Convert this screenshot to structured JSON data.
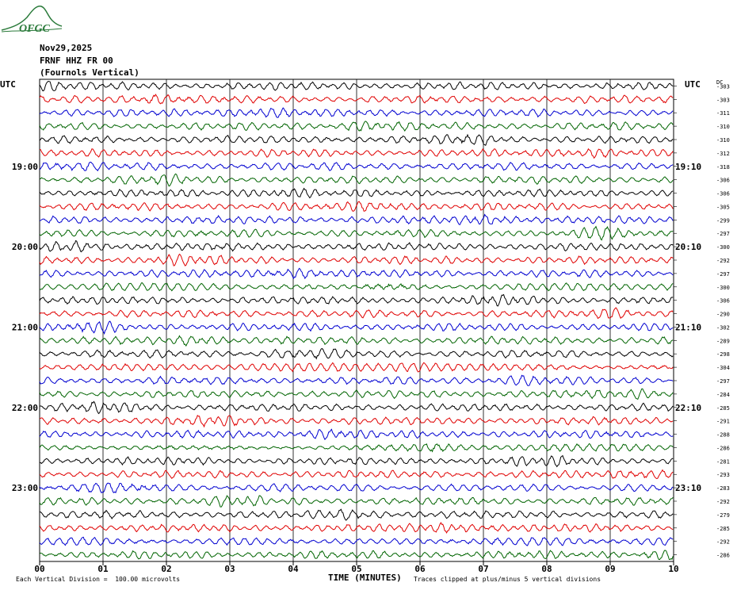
{
  "logo": {
    "text": "OFGC"
  },
  "header": {
    "date": "Nov29,2025",
    "station": "FRNF HHZ FR 00",
    "description": "(Fournols Vertical)"
  },
  "axes": {
    "left_label": "UTC",
    "right_label": "UTC",
    "dc_label": "DC",
    "x_title": "TIME (MINUTES)"
  },
  "footer": {
    "scale_note": "Each Vertical Division =  100.00 microvolts",
    "clip_note": "Traces clipped at plus/minus 5 vertical divisions"
  },
  "colors": {
    "trace_cycle": [
      "#000000",
      "#e00000",
      "#0000d0",
      "#006400"
    ],
    "grid": "#000000",
    "logo": "#2a7a3a"
  },
  "chart_data": {
    "type": "line",
    "title": "",
    "xlabel": "TIME (MINUTES)",
    "ylabel": "UTC",
    "xlim": [
      0,
      10
    ],
    "x_ticks": [
      "00",
      "01",
      "02",
      "03",
      "04",
      "05",
      "06",
      "07",
      "08",
      "09",
      "10"
    ],
    "left_hour_labels": [
      {
        "row": 6,
        "label": "19:00"
      },
      {
        "row": 12,
        "label": "20:00"
      },
      {
        "row": 18,
        "label": "21:00"
      },
      {
        "row": 24,
        "label": "22:00"
      },
      {
        "row": 30,
        "label": "23:00"
      }
    ],
    "right_hour_labels": [
      {
        "row": 6,
        "label": "19:10"
      },
      {
        "row": 12,
        "label": "20:10"
      },
      {
        "row": 18,
        "label": "21:10"
      },
      {
        "row": 24,
        "label": "22:10"
      },
      {
        "row": 30,
        "label": "23:10"
      }
    ],
    "dc_offsets": [
      -303,
      -303,
      -311,
      -310,
      -310,
      -312,
      -318,
      -306,
      -306,
      -305,
      -299,
      -297,
      -300,
      -292,
      -297,
      -300,
      -306,
      -290,
      -302,
      -289,
      -298,
      -304,
      -297,
      -284,
      -285,
      -291,
      -288,
      -286,
      -281,
      -293,
      -283,
      -292,
      -279,
      -285,
      -292,
      -286
    ],
    "trace_count": 36,
    "vertical_division_microvolts": 100.0,
    "clip_divisions": 5
  }
}
